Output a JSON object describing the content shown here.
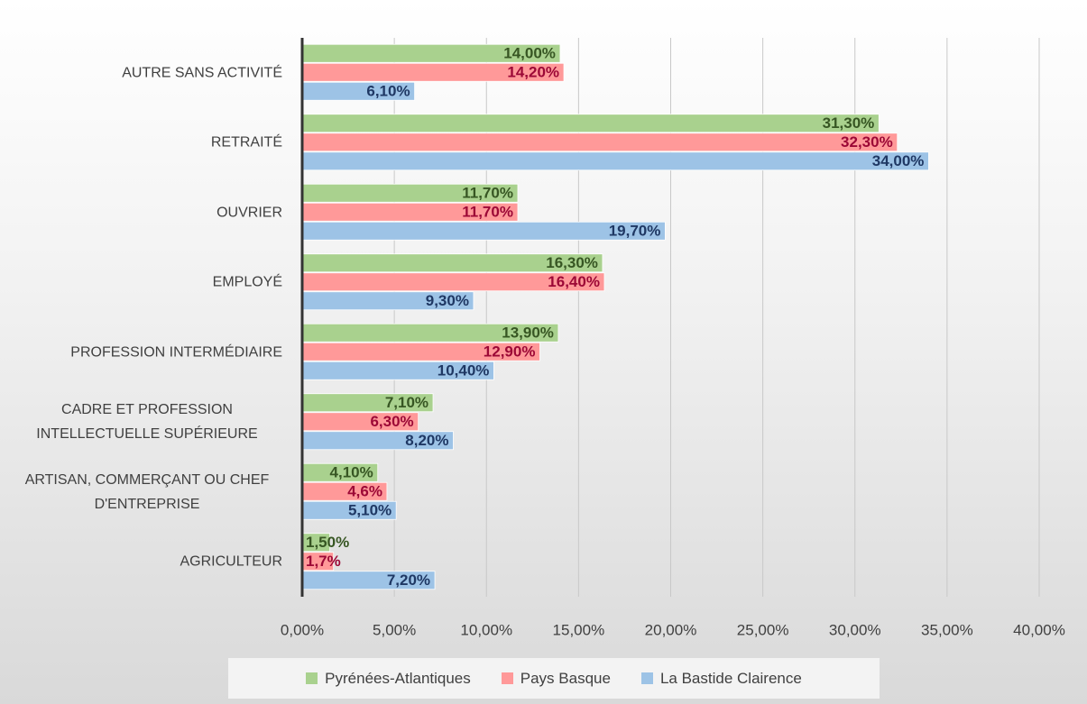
{
  "chart_data": {
    "type": "hbar",
    "categories": [
      "AUTRE SANS ACTIVITÉ",
      "RETRAITÉ",
      "OUVRIER",
      "EMPLOYÉ",
      "PROFESSION INTERMÉDIAIRE",
      "CADRE ET PROFESSION INTELLECTUELLE SUPÉRIEURE",
      "ARTISAN, COMMERÇANT OU CHEF D'ENTREPRISE",
      "AGRICULTEUR"
    ],
    "series": [
      {
        "name": "Pyrénées-Atlantiques",
        "color": "#a9d18e",
        "label_color": "#375623",
        "values": [
          14.0,
          31.3,
          11.7,
          16.3,
          13.9,
          7.1,
          4.1,
          1.5
        ],
        "value_labels": [
          "14,00%",
          "31,30%",
          "11,70%",
          "16,30%",
          "13,90%",
          "7,10%",
          "4,10%",
          "1,50%"
        ]
      },
      {
        "name": "Pays Basque",
        "color": "#ff9999",
        "label_color": "#9c0836",
        "values": [
          14.2,
          32.3,
          11.7,
          16.4,
          12.9,
          6.3,
          4.6,
          1.7
        ],
        "value_labels": [
          "14,20%",
          "32,30%",
          "11,70%",
          "16,40%",
          "12,90%",
          "6,30%",
          "4,6%",
          "1,7%"
        ]
      },
      {
        "name": "La Bastide Clairence",
        "color": "#9dc3e6",
        "label_color": "#1f3864",
        "values": [
          6.1,
          34.0,
          19.7,
          9.3,
          10.4,
          8.2,
          5.1,
          7.2
        ],
        "value_labels": [
          "6,10%",
          "34,00%",
          "19,70%",
          "9,30%",
          "10,40%",
          "8,20%",
          "5,10%",
          "7,20%"
        ]
      }
    ],
    "xlim": [
      0,
      40
    ],
    "xticks": [
      {
        "value": 0,
        "label": "0,00%"
      },
      {
        "value": 5,
        "label": "5,00%"
      },
      {
        "value": 10,
        "label": "10,00%"
      },
      {
        "value": 15,
        "label": "15,00%"
      },
      {
        "value": 20,
        "label": "20,00%"
      },
      {
        "value": 25,
        "label": "25,00%"
      },
      {
        "value": 30,
        "label": "30,00%"
      },
      {
        "value": 35,
        "label": "35,00%"
      },
      {
        "value": 40,
        "label": "40,00%"
      }
    ],
    "grid": true,
    "legend": "bottom"
  }
}
